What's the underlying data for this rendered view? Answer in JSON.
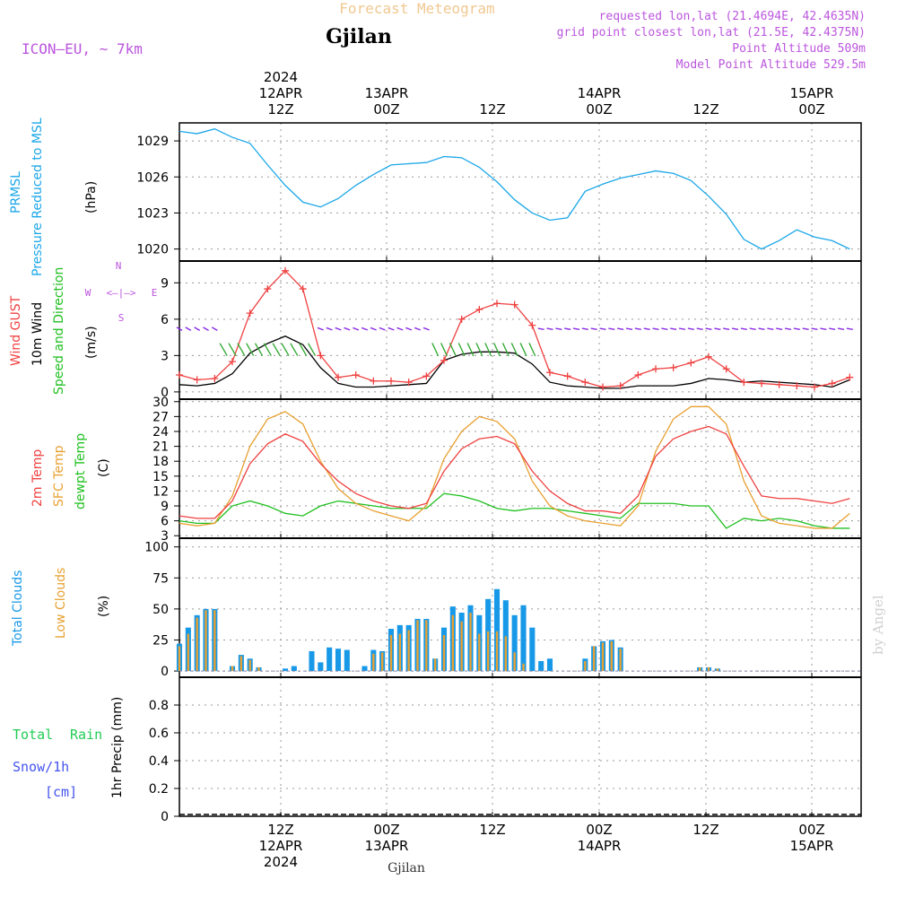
{
  "header": {
    "title": "Forecast Meteogram",
    "location": "Gjilan",
    "model": "ICON–EU, ∼ 7km",
    "requested": "requested lon,lat (21.4694E, 42.4635N)",
    "gridpoint": "grid point closest lon,lat (21.5E, 42.4375N)",
    "point_alt": "Point Altitude 509m",
    "model_alt": "Model Point Altitude 529.5m",
    "footer": "Gjilan",
    "watermark": "by Angel"
  },
  "colors": {
    "pressure": "#1ba7e8",
    "gust": "#f04040",
    "wind": "#000000",
    "sfc": "#e8a030",
    "dewpt": "#20c020",
    "total_clouds": "#1899e8",
    "low_clouds": "#e8a030",
    "rain": "#22cc55",
    "snow": "#4455ee",
    "title": "#f0c890",
    "meta": "#bb55dd",
    "arrow_purple": "#8a2be2",
    "arrow_blue": "#2266ee",
    "arrow_green": "#33aa33"
  },
  "top_axis": [
    {
      "lines": [
        "2024",
        "12APR",
        "12Z"
      ]
    },
    {
      "lines": [
        "13APR",
        "00Z"
      ]
    },
    {
      "lines": [
        "12Z"
      ]
    },
    {
      "lines": [
        "14APR",
        "00Z"
      ]
    },
    {
      "lines": [
        "12Z"
      ]
    },
    {
      "lines": [
        "15APR",
        "00Z"
      ]
    }
  ],
  "bottom_axis": [
    {
      "lines": [
        "12Z",
        "12APR",
        "2024"
      ]
    },
    {
      "lines": [
        "00Z",
        "13APR"
      ]
    },
    {
      "lines": [
        "12Z"
      ]
    },
    {
      "lines": [
        "00Z",
        "14APR"
      ]
    },
    {
      "lines": [
        "12Z"
      ]
    },
    {
      "lines": [
        "00Z",
        "15APR"
      ]
    }
  ],
  "compass": {
    "n": "N",
    "s": "S",
    "w": "W",
    "e": "E",
    "sym": "<–|–>"
  },
  "panel_labels": {
    "pressure": [
      "PRMSL",
      "Pressure Reduced to MSL",
      "(hPa)"
    ],
    "wind": [
      "Wind GUST",
      "10m Wind",
      "Speed and Direction",
      "(m/s)"
    ],
    "temp": [
      "2m Temp",
      "SFC Temp",
      "dewpt Temp",
      "(C)"
    ],
    "clouds": [
      "Total Clouds",
      "Low Clouds",
      "(%)"
    ],
    "precip": [
      "Total",
      "Rain",
      "Snow/1h",
      "[cm]",
      "1hr Precip (mm)"
    ]
  },
  "chart_data": [
    {
      "type": "line",
      "panel": "pressure",
      "ylabel": "(hPa)",
      "yticks": [
        1020,
        1023,
        1026,
        1029
      ],
      "ylim": [
        1019,
        1030.5
      ],
      "x_hours": [
        0,
        2,
        4,
        6,
        8,
        10,
        12,
        14,
        16,
        18,
        20,
        22,
        24,
        26,
        28,
        30,
        32,
        34,
        36,
        38,
        40,
        42,
        44,
        46,
        48,
        50,
        52,
        54,
        56,
        58,
        60,
        62,
        64,
        66,
        68,
        70,
        72,
        74,
        76
      ],
      "series": [
        {
          "name": "PRMSL",
          "values": [
            1029.8,
            1029.6,
            1030.0,
            1029.3,
            1028.8,
            1027.0,
            1025.3,
            1023.9,
            1023.5,
            1024.2,
            1025.3,
            1026.2,
            1027.0,
            1027.1,
            1027.2,
            1027.7,
            1027.6,
            1026.8,
            1025.6,
            1024.1,
            1023.0,
            1022.4,
            1022.6,
            1024.8,
            1025.4,
            1025.9,
            1026.2,
            1026.5,
            1026.3,
            1025.7,
            1024.4,
            1022.9,
            1020.8,
            1020.0,
            1020.7,
            1021.6,
            1021.0,
            1020.7,
            1020.0
          ]
        }
      ]
    },
    {
      "type": "line",
      "panel": "wind",
      "ylabel": "(m/s)",
      "yticks": [
        0,
        3,
        6,
        9
      ],
      "ylim": [
        -0.6,
        10.8
      ],
      "x_hours": [
        0,
        2,
        4,
        6,
        8,
        10,
        12,
        14,
        16,
        18,
        20,
        22,
        24,
        26,
        28,
        30,
        32,
        34,
        36,
        38,
        40,
        42,
        44,
        46,
        48,
        50,
        52,
        54,
        56,
        58,
        60,
        62,
        64,
        66,
        68,
        70,
        72,
        74,
        76
      ],
      "series": [
        {
          "name": "Wind GUST",
          "values": [
            1.4,
            1.0,
            1.1,
            2.5,
            6.5,
            8.5,
            10.0,
            8.5,
            3.0,
            1.2,
            1.4,
            0.9,
            0.9,
            0.8,
            1.3,
            2.6,
            6.0,
            6.8,
            7.3,
            7.2,
            5.5,
            1.6,
            1.3,
            0.8,
            0.4,
            0.5,
            1.4,
            1.9,
            2.0,
            2.4,
            2.9,
            1.9,
            0.8,
            0.7,
            0.6,
            0.5,
            0.4,
            0.7,
            1.2
          ]
        },
        {
          "name": "10m Wind",
          "values": [
            0.6,
            0.5,
            0.7,
            1.5,
            3.2,
            4.0,
            4.6,
            3.9,
            2.0,
            0.7,
            0.4,
            0.4,
            0.5,
            0.6,
            0.7,
            2.6,
            3.1,
            3.3,
            3.3,
            3.2,
            2.3,
            0.8,
            0.5,
            0.4,
            0.3,
            0.3,
            0.5,
            0.5,
            0.5,
            0.7,
            1.1,
            1.0,
            0.8,
            0.9,
            0.8,
            0.7,
            0.6,
            0.4,
            1.0
          ]
        }
      ]
    },
    {
      "type": "line",
      "panel": "temp",
      "ylabel": "(C)",
      "yticks": [
        3,
        6,
        9,
        12,
        15,
        18,
        21,
        24,
        27,
        30
      ],
      "ylim": [
        2.5,
        30.5
      ],
      "x_hours": [
        0,
        2,
        4,
        6,
        8,
        10,
        12,
        14,
        16,
        18,
        20,
        22,
        24,
        26,
        28,
        30,
        32,
        34,
        36,
        38,
        40,
        42,
        44,
        46,
        48,
        50,
        52,
        54,
        56,
        58,
        60,
        62,
        64,
        66,
        68,
        70,
        72,
        74,
        76
      ],
      "series": [
        {
          "name": "2m Temp",
          "values": [
            7.0,
            6.5,
            6.5,
            10.0,
            17.5,
            21.5,
            23.5,
            22.0,
            17.5,
            14.0,
            11.5,
            10.0,
            9.0,
            8.5,
            9.5,
            16.0,
            20.5,
            22.5,
            23.0,
            21.5,
            16.0,
            12.0,
            9.5,
            8.0,
            8.0,
            7.5,
            11.0,
            19.0,
            22.5,
            24.0,
            25.0,
            23.5,
            17.0,
            11.0,
            10.5,
            10.5,
            10.0,
            9.5,
            10.5
          ]
        },
        {
          "name": "SFC Temp",
          "values": [
            5.5,
            5.0,
            5.5,
            11.0,
            21.0,
            26.5,
            28.0,
            25.5,
            18.0,
            12.5,
            9.5,
            8.0,
            7.0,
            6.0,
            9.0,
            18.5,
            24.0,
            27.0,
            26.0,
            22.5,
            14.0,
            9.0,
            7.0,
            6.0,
            5.5,
            5.0,
            9.0,
            20.0,
            26.5,
            29.0,
            29.0,
            25.5,
            14.0,
            7.0,
            5.5,
            5.0,
            4.5,
            4.5,
            7.5
          ]
        },
        {
          "name": "dewpt Temp",
          "values": [
            6.0,
            5.5,
            5.5,
            9.0,
            10.0,
            9.0,
            7.5,
            7.0,
            9.0,
            10.0,
            9.5,
            9.0,
            8.5,
            8.5,
            8.5,
            11.5,
            11.0,
            10.0,
            8.5,
            8.0,
            8.5,
            8.5,
            8.0,
            7.5,
            7.0,
            6.5,
            9.5,
            9.5,
            9.5,
            9.0,
            9.0,
            4.5,
            6.5,
            6.0,
            6.5,
            6.0,
            5.0,
            4.5,
            4.5
          ]
        }
      ]
    },
    {
      "type": "bar",
      "panel": "clouds",
      "ylabel": "(%)",
      "yticks": [
        0,
        25,
        50,
        75,
        100
      ],
      "ylim": [
        -5,
        107
      ],
      "x_hours": [
        0,
        1,
        2,
        3,
        4,
        5,
        6,
        7,
        8,
        9,
        10,
        11,
        12,
        13,
        14,
        15,
        16,
        17,
        18,
        19,
        20,
        21,
        22,
        23,
        24,
        25,
        26,
        27,
        28,
        29,
        30,
        31,
        32,
        33,
        34,
        35,
        36,
        37,
        38,
        39,
        40,
        41,
        42,
        43,
        44,
        45,
        46,
        47,
        48,
        49,
        50,
        51,
        52,
        53,
        54,
        55,
        56,
        57,
        58,
        59,
        60,
        61,
        62,
        63,
        64,
        65,
        66,
        67,
        68,
        69,
        70,
        71,
        72,
        73,
        74,
        75,
        76
      ],
      "series": [
        {
          "name": "Total Clouds",
          "values": [
            22,
            35,
            45,
            50,
            50,
            0,
            4,
            13,
            10,
            3,
            0,
            0,
            2,
            4,
            0,
            16,
            7,
            19,
            18,
            17,
            0,
            4,
            17,
            16,
            34,
            37,
            37,
            42,
            42,
            10,
            35,
            52,
            47,
            53,
            45,
            58,
            66,
            57,
            45,
            53,
            35,
            8,
            10,
            0,
            0,
            0,
            10,
            20,
            24,
            25,
            19,
            0,
            0,
            0,
            0,
            0,
            0,
            0,
            0,
            3,
            3,
            2,
            0,
            0,
            0,
            0,
            0,
            0,
            0,
            0,
            0,
            0,
            0,
            0,
            0,
            0,
            0
          ]
        },
        {
          "name": "Low Clouds",
          "values": [
            20,
            30,
            43,
            49,
            49,
            0,
            4,
            12,
            9,
            3,
            0,
            0,
            0,
            0,
            0,
            0,
            0,
            0,
            0,
            0,
            0,
            0,
            14,
            15,
            29,
            30,
            33,
            41,
            41,
            10,
            29,
            45,
            40,
            47,
            30,
            32,
            32,
            28,
            15,
            6,
            0,
            0,
            0,
            0,
            0,
            0,
            8,
            20,
            23,
            24,
            18,
            0,
            0,
            0,
            0,
            0,
            0,
            0,
            0,
            3,
            3,
            2,
            0,
            0,
            0,
            0,
            0,
            0,
            0,
            0,
            0,
            0,
            0,
            0,
            0,
            0,
            0
          ]
        }
      ]
    },
    {
      "type": "bar",
      "panel": "precip",
      "ylabel": "1hr Precip (mm)",
      "yticks": [
        0,
        0.2,
        0.4,
        0.6,
        0.8
      ],
      "ylim": [
        0,
        1.0
      ],
      "series": [
        {
          "name": "Total Rain",
          "values": [
            0
          ]
        },
        {
          "name": "Snow/1h [cm]",
          "values": [
            0
          ]
        }
      ]
    }
  ],
  "wind_arrows": {
    "colors_note": "purple calm, blue light, green-yellow-orange strong",
    "rows": [
      {
        "hours_from": 0,
        "hours_to": 4,
        "level": 5.2,
        "dir_deg": 60,
        "color": "purple"
      },
      {
        "hours_from": 5,
        "hours_to": 15,
        "level": 3.5,
        "dir_deg": 30,
        "color": "green"
      },
      {
        "hours_from": 16,
        "hours_to": 28,
        "level": 5.2,
        "dir_deg": 70,
        "color": "purple"
      },
      {
        "hours_from": 29,
        "hours_to": 40,
        "level": 3.5,
        "dir_deg": 25,
        "color": "green"
      },
      {
        "hours_from": 41,
        "hours_to": 76,
        "level": 5.2,
        "dir_deg": 80,
        "color": "purple"
      }
    ]
  }
}
